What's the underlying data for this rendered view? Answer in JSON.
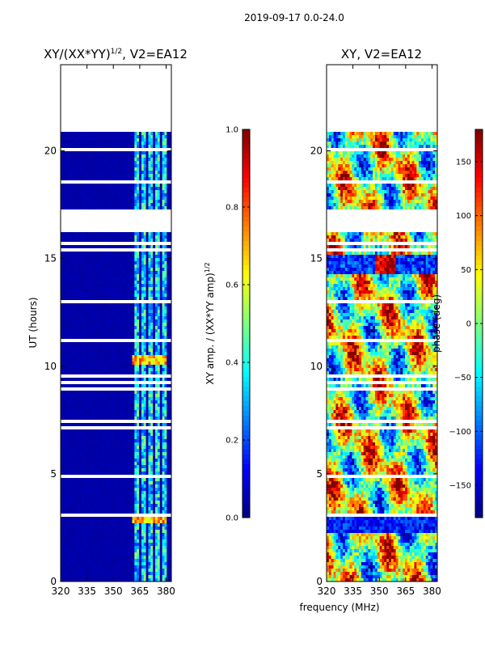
{
  "figure_title": "2019-09-17 0.0-24.0",
  "shared_xlabel": "frequency (MHz)",
  "chart_data": [
    {
      "type": "heatmap",
      "id": "amp",
      "title": "XY/(XX*YY)",
      "title_sup": "1/2",
      "title_suffix": ", V2=EA12",
      "xlabel": "frequency (MHz)",
      "ylabel": "UT (hours)",
      "xlim": [
        320,
        383
      ],
      "ylim": [
        0,
        24
      ],
      "xticks": [
        320,
        335,
        350,
        365,
        380
      ],
      "yticks": [
        0,
        5,
        10,
        15,
        20
      ],
      "colormap": "jet",
      "colorbar": {
        "label": "XY amp. / (XX*YY amp)",
        "label_sup": "1/2",
        "range": [
          0.0,
          1.0
        ],
        "ticks": [
          0.0,
          0.2,
          0.4,
          0.6,
          0.8,
          1.0
        ],
        "tick_labels": [
          "0.0",
          "0.2",
          "0.4",
          "0.6",
          "0.8",
          "1.0"
        ]
      },
      "data_coverage_hours": [
        0,
        20.9
      ],
      "gap_hours": [
        [
          16.2,
          17.3
        ]
      ],
      "bright_freq_band_mhz": [
        361,
        381
      ],
      "bright_rows_hours": [
        2.9,
        10.3
      ]
    },
    {
      "type": "heatmap",
      "id": "phase",
      "title": "XY, V2=EA12",
      "xlabel": "frequency (MHz)",
      "ylabel": "",
      "xlim": [
        320,
        383
      ],
      "ylim": [
        0,
        24
      ],
      "xticks": [
        320,
        335,
        350,
        365,
        380
      ],
      "yticks": [
        0,
        5,
        10,
        15,
        20
      ],
      "colormap": "jet",
      "colorbar": {
        "label": "phase (deg)",
        "range": [
          -180,
          180
        ],
        "ticks": [
          -150,
          -100,
          -50,
          0,
          50,
          100,
          150
        ],
        "tick_labels": [
          "−150",
          "−100",
          "−50",
          "0",
          "50",
          "100",
          "150"
        ]
      },
      "data_coverage_hours": [
        0,
        20.9
      ],
      "gap_hours": [
        [
          16.2,
          17.3
        ]
      ]
    }
  ]
}
